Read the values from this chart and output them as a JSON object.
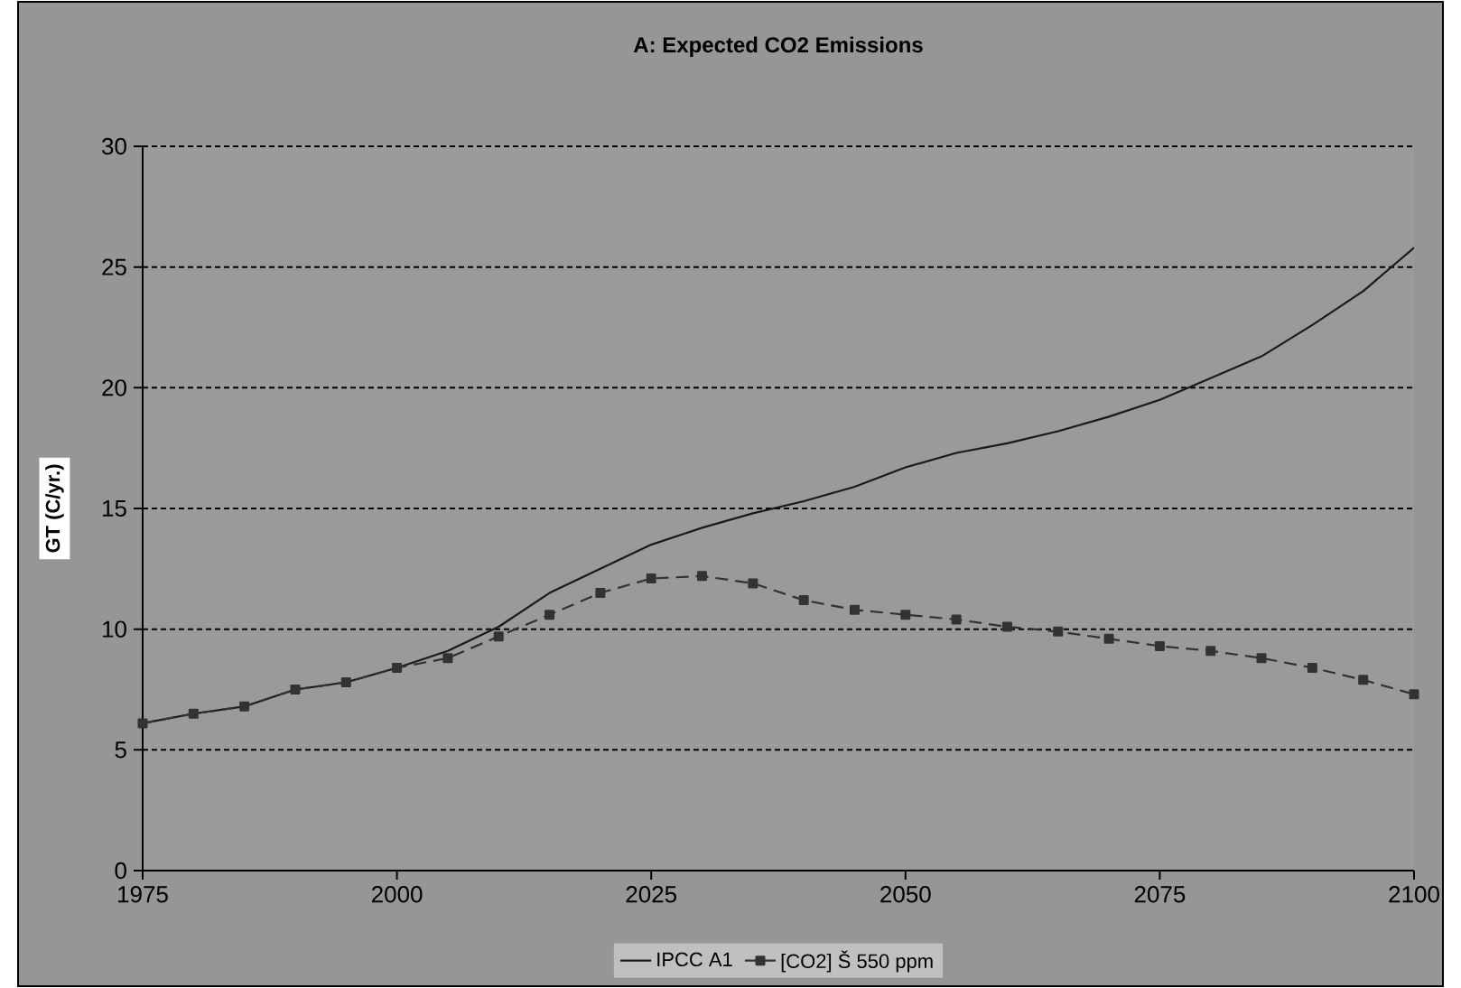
{
  "chart_data": {
    "type": "line",
    "title": "A: Expected CO2 Emissions",
    "ylabel": "GT (C/yr.)",
    "x": [
      1975,
      1980,
      1985,
      1990,
      1995,
      2000,
      2005,
      2010,
      2015,
      2020,
      2025,
      2030,
      2035,
      2040,
      2045,
      2050,
      2055,
      2060,
      2065,
      2070,
      2075,
      2080,
      2085,
      2090,
      2095,
      2100
    ],
    "series": [
      {
        "name": "IPCC A1",
        "color": "#1a1a1a",
        "line_style": "solid",
        "marker": "none",
        "values": [
          6.1,
          6.5,
          6.8,
          7.5,
          7.8,
          8.4,
          9.1,
          10.1,
          11.5,
          12.5,
          13.5,
          14.2,
          14.8,
          15.3,
          15.9,
          16.7,
          17.3,
          17.7,
          18.2,
          18.8,
          19.5,
          20.4,
          21.3,
          22.6,
          24.0,
          25.8
        ]
      },
      {
        "name": "[CO2] Š 550 ppm",
        "color": "#333333",
        "line_style": "dashed",
        "marker": "square",
        "values": [
          6.1,
          6.5,
          6.8,
          7.5,
          7.8,
          8.4,
          8.8,
          9.7,
          10.6,
          11.5,
          12.1,
          12.2,
          11.9,
          11.2,
          10.8,
          10.6,
          10.4,
          10.1,
          9.9,
          9.6,
          9.3,
          9.1,
          8.8,
          8.4,
          7.9,
          7.3
        ]
      }
    ],
    "xlim": [
      1975,
      2100
    ],
    "xticks": [
      1975,
      2000,
      2025,
      2050,
      2075,
      2100
    ],
    "ylim": [
      0,
      30
    ],
    "yticks": [
      0,
      5,
      10,
      15,
      20,
      25,
      30
    ],
    "grid": "y",
    "legend": "bottom"
  }
}
